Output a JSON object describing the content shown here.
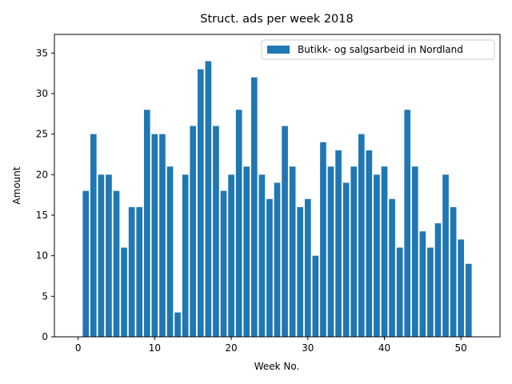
{
  "chart_data": {
    "type": "bar",
    "title": "Struct. ads per week 2018",
    "xlabel": "Week No.",
    "ylabel": "Amount",
    "xlim": [
      -3.1,
      55.1
    ],
    "ylim": [
      0,
      37.3
    ],
    "xticks": [
      0,
      10,
      20,
      30,
      40,
      50
    ],
    "yticks": [
      0,
      5,
      10,
      15,
      20,
      25,
      30,
      35
    ],
    "legend_position": "top-right",
    "grid": false,
    "series": [
      {
        "name": "Butikk- og salgsarbeid in Nordland",
        "color": "#1f77b4",
        "x": [
          1,
          2,
          3,
          4,
          5,
          6,
          7,
          8,
          9,
          10,
          11,
          12,
          13,
          14,
          15,
          16,
          17,
          18,
          19,
          20,
          21,
          22,
          23,
          24,
          25,
          26,
          27,
          28,
          29,
          30,
          31,
          32,
          33,
          34,
          35,
          36,
          37,
          38,
          39,
          40,
          41,
          42,
          43,
          44,
          45,
          46,
          47,
          48,
          49,
          50,
          51
        ],
        "values": [
          18,
          25,
          20,
          20,
          18,
          11,
          16,
          16,
          28,
          25,
          25,
          21,
          3,
          20,
          26,
          33,
          34,
          26,
          18,
          20,
          28,
          21,
          32,
          20,
          17,
          19,
          26,
          21,
          16,
          17,
          10,
          24,
          21,
          23,
          19,
          21,
          25,
          23,
          20,
          21,
          17,
          11,
          28,
          21,
          13,
          11,
          14,
          20,
          16,
          12,
          9
        ]
      }
    ]
  }
}
